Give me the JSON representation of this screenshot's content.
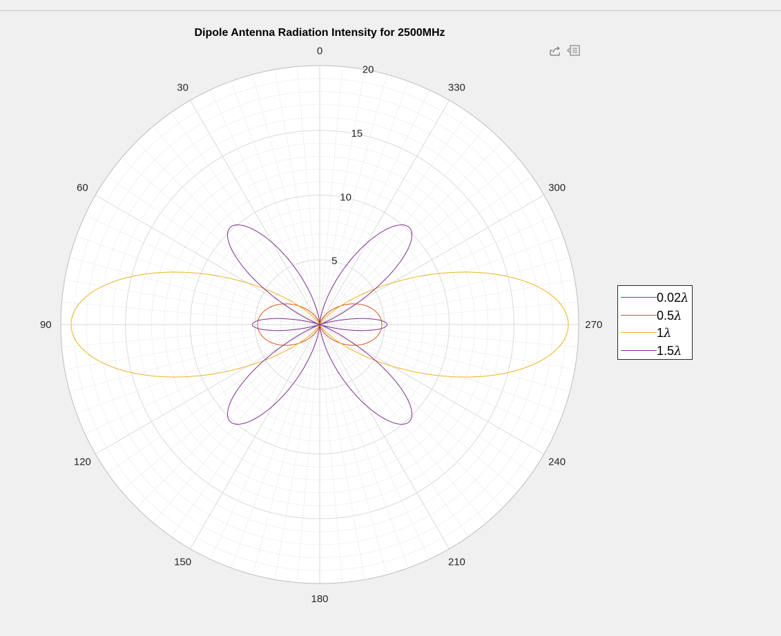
{
  "toolbar": {
    "icons": [
      "export-icon",
      "edit-icon"
    ]
  },
  "chart_data": {
    "type": "polar",
    "title": "Dipole Antenna Radiation Intensity for 2500MHz",
    "theta_zero_location": "top",
    "theta_direction": "counterclockwise",
    "theta_ticks": [
      0,
      30,
      60,
      90,
      120,
      150,
      180,
      210,
      240,
      270,
      300,
      330
    ],
    "theta_tick_labels": [
      "0",
      "30",
      "60",
      "90",
      "120",
      "150",
      "180",
      "210",
      "240",
      "270",
      "300",
      "330"
    ],
    "rlim": [
      0,
      20
    ],
    "r_ticks": [
      5,
      10,
      15,
      20
    ],
    "r_tick_labels": [
      "5",
      "10",
      "15",
      "20"
    ],
    "grid": true,
    "minor_grid": true,
    "legend_location": "right",
    "series": [
      {
        "name": "0.02λ",
        "label_parts": [
          "0.02",
          "λ"
        ],
        "length_wavelengths": 0.02,
        "color": "#0072BD",
        "peak_intensity": 0.001
      },
      {
        "name": "0.5λ",
        "label_parts": [
          "0.5",
          "λ"
        ],
        "length_wavelengths": 0.5,
        "color": "#D95319",
        "peak_intensity": 4.8
      },
      {
        "name": "1λ",
        "label_parts": [
          "1",
          "λ"
        ],
        "length_wavelengths": 1,
        "color": "#EDB120",
        "peak_intensity": 19.2
      },
      {
        "name": "1.5λ",
        "label_parts": [
          "1.5",
          "λ"
        ],
        "length_wavelengths": 1.5,
        "color": "#7E2F8E",
        "peak_intensity": 10.2
      }
    ]
  }
}
